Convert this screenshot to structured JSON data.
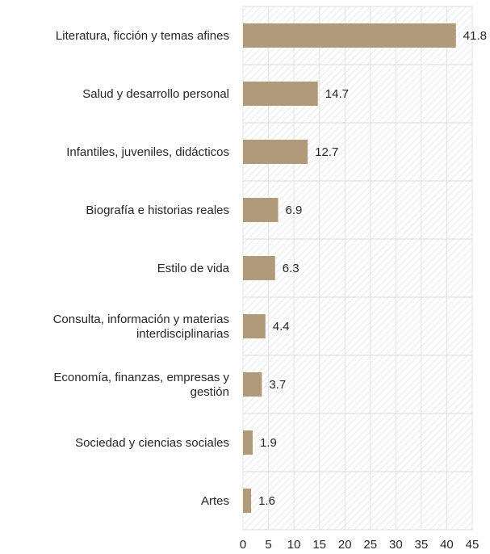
{
  "chart_data": {
    "type": "bar",
    "orientation": "horizontal",
    "categories": [
      [
        "Literatura,  ficción y temas afines"
      ],
      [
        "Salud y desarrollo personal"
      ],
      [
        "Infantiles, juveniles, didácticos"
      ],
      [
        "Biografía e historias reales"
      ],
      [
        "Estilo de vida"
      ],
      [
        "Consulta, información y materias",
        "interdisciplinarias"
      ],
      [
        "Economía, finanzas, empresas y",
        "gestión"
      ],
      [
        "Sociedad y ciencias sociales"
      ],
      [
        "Artes"
      ]
    ],
    "values": [
      41.8,
      14.7,
      12.7,
      6.9,
      6.3,
      4.4,
      3.7,
      1.9,
      1.6
    ],
    "data_labels": [
      "41.8",
      "14.7",
      "12.7",
      "6.9",
      "6.3",
      "4.4",
      "3.7",
      "1.9",
      "1.6"
    ],
    "x_ticks": [
      "0",
      "5",
      "10",
      "15",
      "20",
      "25",
      "30",
      "35",
      "40",
      "45"
    ],
    "xlim": [
      0,
      45
    ],
    "title": "",
    "xlabel": "",
    "ylabel": "",
    "grid": true,
    "legend": "none",
    "colors": {
      "bar": "#b09a7a",
      "plot_background_hatch": "#d9d9d9",
      "plot_border": "#d0d0d0",
      "text": "#262626"
    }
  }
}
